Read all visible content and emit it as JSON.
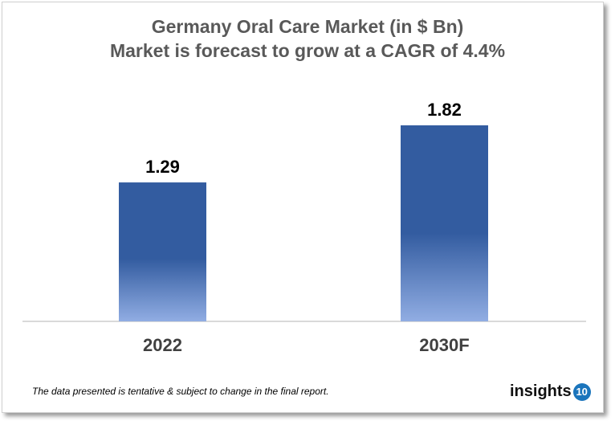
{
  "chart_data": {
    "type": "bar",
    "title": "Germany Oral Care Market (in $ Bn)",
    "subtitle": "Market is forecast to grow at a CAGR of 4.4%",
    "categories": [
      "2022",
      "2030F"
    ],
    "values": [
      1.29,
      1.82
    ],
    "data_labels": [
      "1.29",
      "1.82"
    ],
    "ylim": [
      0,
      1.82
    ],
    "grid": false,
    "colors": {
      "bar_top": "#335ca0",
      "bar_bottom": "#91ade3"
    }
  },
  "footer": {
    "note": "The data presented is tentative & subject to change in the final report.",
    "logo_text": "insights",
    "logo_badge": "10"
  }
}
